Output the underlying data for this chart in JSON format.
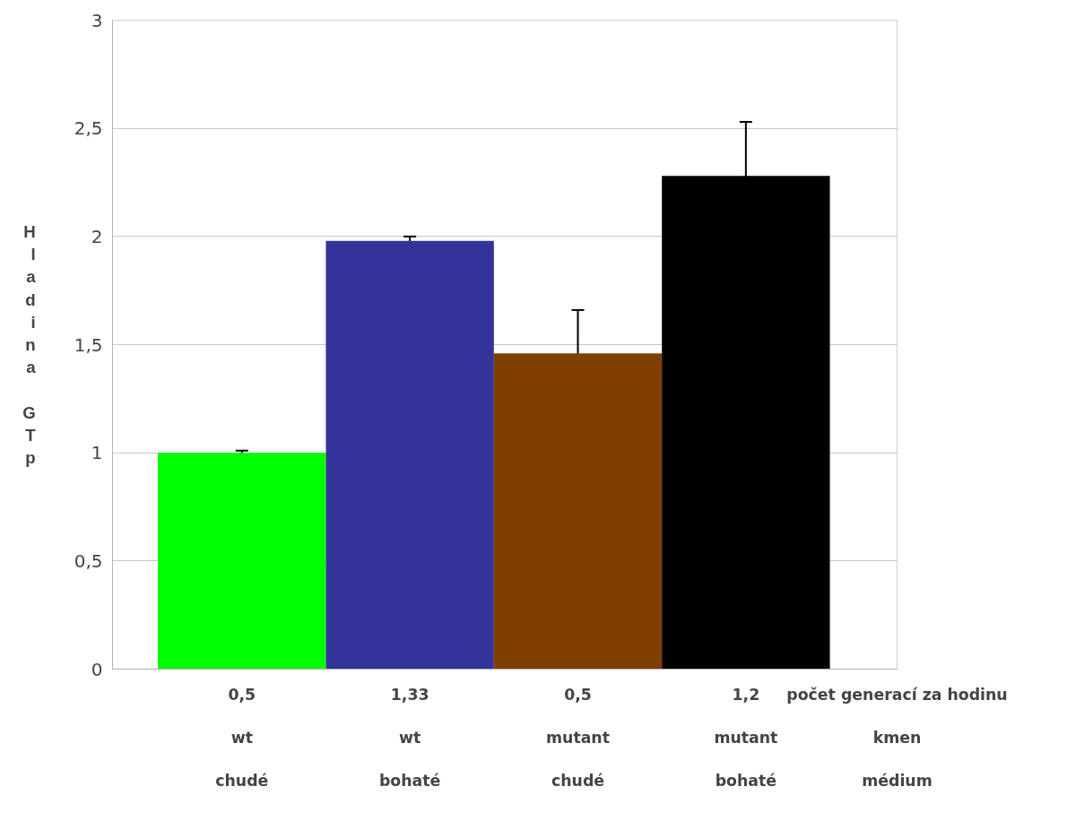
{
  "chart_data": {
    "type": "bar",
    "ylabel": "Hladina GTp",
    "xlabel": "počet generací za hodinu\nkmen\nmédium",
    "categories": [
      "0,5\nwt\nchudé",
      "1,33\nwt\nbohaté",
      "0,5\nmutant\nchudé",
      "1,2\nmutant\nbohaté"
    ],
    "values": [
      1.0,
      1.98,
      1.46,
      2.28
    ],
    "colors": [
      "#00ff00",
      "#343399",
      "#7f3f00",
      "#000000"
    ],
    "errors": [
      0.01,
      0.02,
      0.2,
      0.25
    ],
    "ylim": [
      0,
      3
    ],
    "yticks": [
      {
        "value": 0,
        "label": "0"
      },
      {
        "value": 0.5,
        "label": "0,5"
      },
      {
        "value": 1,
        "label": "1"
      },
      {
        "value": 1.5,
        "label": "1,5"
      },
      {
        "value": 2,
        "label": "2"
      },
      {
        "value": 2.5,
        "label": "2,5"
      },
      {
        "value": 3,
        "label": "3"
      }
    ],
    "grid": "y"
  }
}
